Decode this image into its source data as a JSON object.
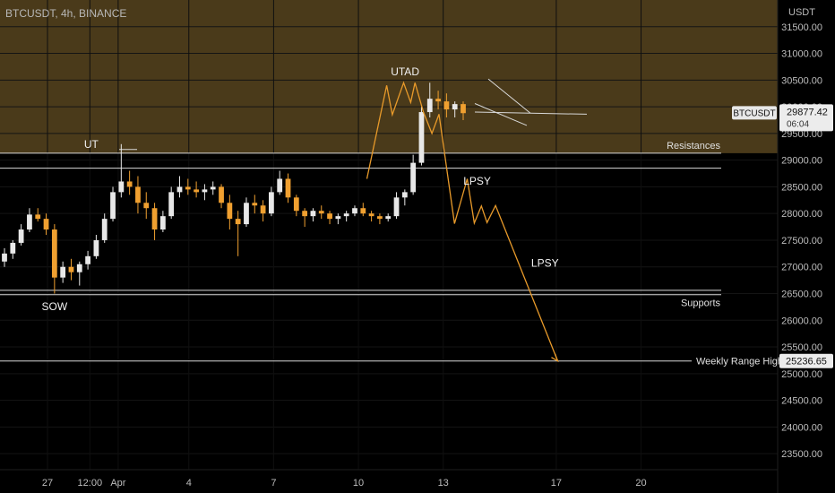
{
  "header": {
    "title": "BTCUSDT, 4h, BINANCE"
  },
  "axis": {
    "currency": "USDT"
  },
  "colors": {
    "background": "#000000",
    "resistance_zone": "#4a3a1a",
    "bull_candle": "#e8e8e8",
    "bear_candle": "#f0a030",
    "projection": "#e89a2a",
    "line": "#d8d8d8"
  },
  "chart_data": {
    "type": "candlestick",
    "symbol": "BTCUSDT",
    "interval": "4h",
    "exchange": "BINANCE",
    "ylim": [
      23200,
      32000
    ],
    "y_ticks": [
      "31500.00",
      "31000.00",
      "30500.00",
      "30000.00",
      "29500.00",
      "29000.00",
      "28500.00",
      "28000.00",
      "27500.00",
      "27000.00",
      "26500.00",
      "26000.00",
      "25500.00",
      "25000.00",
      "24500.00",
      "24000.00",
      "23500.00"
    ],
    "y_tick_values": [
      31500,
      31000,
      30500,
      30000,
      29500,
      29000,
      28500,
      28000,
      27500,
      27000,
      26500,
      26000,
      25500,
      25000,
      24500,
      24000,
      23500
    ],
    "x_ticks": [
      {
        "label": "27",
        "day": 0
      },
      {
        "label": "12:00",
        "day": 1.5
      },
      {
        "label": "Apr",
        "day": 2.5
      },
      {
        "label": "4",
        "day": 5
      },
      {
        "label": "7",
        "day": 8
      },
      {
        "label": "10",
        "day": 11
      },
      {
        "label": "13",
        "day": 14
      },
      {
        "label": "17",
        "day": 18
      },
      {
        "label": "20",
        "day": 21
      }
    ],
    "resistance_zone": [
      29130,
      32000
    ],
    "levels": [
      {
        "name": "Resistances",
        "value": 29130
      },
      {
        "name": "",
        "value": 28850
      },
      {
        "name": "",
        "value": 26560
      },
      {
        "name": "Supports",
        "value": 26480
      },
      {
        "name": "Weekly Range High",
        "value": 25236.65
      }
    ],
    "last_price": {
      "label": "BTCUSDT",
      "value": "29877.42",
      "countdown": "06:04"
    },
    "weekly_range_label": "25236.65",
    "annotations": [
      {
        "text": "UT",
        "day": 1.55,
        "price": 29230
      },
      {
        "text": "SOW",
        "day": 0.25,
        "price": 26190
      },
      {
        "text": "UTAD",
        "day": 12.65,
        "price": 30590
      },
      {
        "text": "LPSY",
        "day": 15.2,
        "price": 28540
      },
      {
        "text": "LPSY",
        "day": 17.6,
        "price": 27000
      }
    ],
    "candles": [
      [
        27100,
        27350,
        27000,
        27250
      ],
      [
        27250,
        27500,
        27150,
        27450
      ],
      [
        27450,
        27800,
        27400,
        27700
      ],
      [
        27700,
        28100,
        27650,
        27980
      ],
      [
        27980,
        28100,
        27850,
        27900
      ],
      [
        27900,
        28000,
        27600,
        27700
      ],
      [
        27700,
        27800,
        26500,
        26800
      ],
      [
        26800,
        27100,
        26700,
        27000
      ],
      [
        27000,
        27150,
        26750,
        26900
      ],
      [
        26900,
        27100,
        26650,
        27050
      ],
      [
        27050,
        27300,
        26950,
        27200
      ],
      [
        27200,
        27600,
        27150,
        27500
      ],
      [
        27500,
        28000,
        27450,
        27900
      ],
      [
        27900,
        28500,
        27850,
        28400
      ],
      [
        28400,
        29300,
        28300,
        28600
      ],
      [
        28600,
        28800,
        28350,
        28500
      ],
      [
        28500,
        28700,
        28000,
        28200
      ],
      [
        28200,
        28400,
        27900,
        28100
      ],
      [
        28100,
        28200,
        27500,
        27700
      ],
      [
        27700,
        28050,
        27650,
        27950
      ],
      [
        27950,
        28500,
        27900,
        28400
      ],
      [
        28400,
        28700,
        28300,
        28500
      ],
      [
        28500,
        28650,
        28350,
        28450
      ],
      [
        28450,
        28600,
        28300,
        28400
      ],
      [
        28400,
        28550,
        28250,
        28450
      ],
      [
        28450,
        28600,
        28350,
        28500
      ],
      [
        28500,
        28550,
        28100,
        28200
      ],
      [
        28200,
        28350,
        27700,
        27900
      ],
      [
        27900,
        28050,
        27200,
        27800
      ],
      [
        27800,
        28300,
        27750,
        28200
      ],
      [
        28200,
        28350,
        28000,
        28150
      ],
      [
        28150,
        28250,
        27850,
        28000
      ],
      [
        28000,
        28500,
        27950,
        28400
      ],
      [
        28400,
        28800,
        28350,
        28650
      ],
      [
        28650,
        28750,
        28200,
        28300
      ],
      [
        28300,
        28350,
        27950,
        28050
      ],
      [
        28050,
        28100,
        27750,
        27950
      ],
      [
        27950,
        28100,
        27850,
        28050
      ],
      [
        28050,
        28150,
        27900,
        28000
      ],
      [
        28000,
        28050,
        27800,
        27900
      ],
      [
        27900,
        28000,
        27800,
        27950
      ],
      [
        27950,
        28050,
        27850,
        28000
      ],
      [
        28000,
        28150,
        27950,
        28100
      ],
      [
        28100,
        28200,
        27950,
        28000
      ],
      [
        28000,
        28050,
        27850,
        27950
      ],
      [
        27950,
        28000,
        27800,
        27900
      ],
      [
        27900,
        28000,
        27850,
        27950
      ],
      [
        27950,
        28400,
        27900,
        28300
      ],
      [
        28300,
        28450,
        28150,
        28400
      ],
      [
        28400,
        29100,
        28350,
        28950
      ],
      [
        28950,
        30000,
        28900,
        29900
      ],
      [
        29900,
        30450,
        29800,
        30150
      ],
      [
        30150,
        30300,
        29950,
        30100
      ],
      [
        30100,
        30250,
        29800,
        29950
      ],
      [
        29950,
        30100,
        29800,
        30050
      ],
      [
        30050,
        30100,
        29750,
        29880
      ]
    ],
    "projection_path": [
      [
        11.3,
        28650
      ],
      [
        12.0,
        30400
      ],
      [
        12.2,
        29850
      ],
      [
        12.6,
        30450
      ],
      [
        12.85,
        30080
      ],
      [
        13.0,
        30450
      ],
      [
        13.3,
        29900
      ],
      [
        13.6,
        29500
      ],
      [
        13.85,
        29860
      ],
      [
        14.4,
        27810
      ],
      [
        14.85,
        28650
      ],
      [
        15.1,
        27820
      ],
      [
        15.35,
        28140
      ],
      [
        15.55,
        27830
      ],
      [
        15.85,
        28150
      ],
      [
        18.05,
        25236.65
      ]
    ]
  }
}
